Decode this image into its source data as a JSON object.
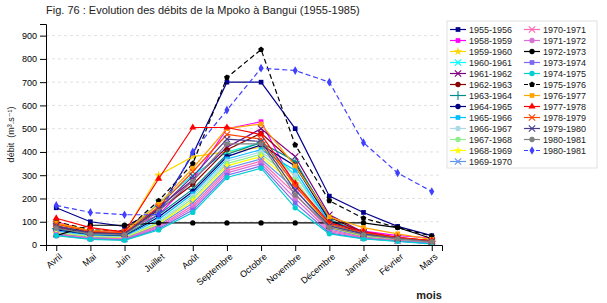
{
  "chart_data": {
    "type": "line",
    "title": "Fig. 76 : Evolution des débits de la Mpoko à Bangui (1955-1985)",
    "ylabel": "débit  (m³.s⁻¹)",
    "xlabel": "mois",
    "categories": [
      "Avril",
      "Mai",
      "Juin",
      "Juillet",
      "Août",
      "Septembre",
      "Octobre",
      "Novembre",
      "Décembre",
      "Janvier",
      "Février",
      "Mars"
    ],
    "ylim": [
      0,
      950
    ],
    "yticks": [
      0,
      100,
      200,
      300,
      400,
      500,
      600,
      700,
      800,
      900
    ],
    "grid": true,
    "legend": "right",
    "series": [
      {
        "name": "1955-1956",
        "color": "#00008B",
        "marker": "square",
        "line_style": "solid",
        "values": [
          160,
          100,
          80,
          150,
          390,
          700,
          700,
          500,
          210,
          140,
          80,
          40
        ]
      },
      {
        "name": "1958-1959",
        "color": "#FF00FF",
        "marker": "square",
        "line_style": "solid",
        "values": [
          100,
          60,
          60,
          130,
          280,
          500,
          530,
          250,
          100,
          60,
          40,
          30
        ]
      },
      {
        "name": "1959-1960",
        "color": "#FFD700",
        "marker": "star",
        "line_style": "solid",
        "values": [
          90,
          55,
          50,
          300,
          380,
          400,
          420,
          300,
          90,
          45,
          30,
          20
        ]
      },
      {
        "name": "1960-1961",
        "color": "#00FFFF",
        "marker": "x",
        "line_style": "solid",
        "values": [
          80,
          50,
          45,
          180,
          300,
          400,
          440,
          300,
          100,
          50,
          30,
          18
        ]
      },
      {
        "name": "1961-1962",
        "color": "#800080",
        "marker": "x",
        "line_style": "solid",
        "values": [
          75,
          50,
          45,
          160,
          280,
          420,
          500,
          380,
          130,
          55,
          32,
          18
        ]
      },
      {
        "name": "1962-1963",
        "color": "#8B0000",
        "marker": "circle",
        "line_style": "solid",
        "values": [
          80,
          55,
          50,
          150,
          260,
          410,
          480,
          350,
          120,
          52,
          30,
          17
        ]
      },
      {
        "name": "1963-1964",
        "color": "#008B8B",
        "marker": "plus",
        "line_style": "solid",
        "values": [
          70,
          45,
          40,
          130,
          240,
          390,
          440,
          360,
          110,
          48,
          28,
          16
        ]
      },
      {
        "name": "1964-1965",
        "color": "#000080",
        "marker": "circle",
        "line_style": "solid",
        "values": [
          65,
          42,
          38,
          120,
          230,
          380,
          430,
          340,
          105,
          45,
          26,
          14
        ]
      },
      {
        "name": "1965-1966",
        "color": "#00BFFF",
        "marker": "square",
        "line_style": "solid",
        "values": [
          60,
          40,
          36,
          110,
          220,
          370,
          410,
          320,
          95,
          42,
          24,
          13
        ]
      },
      {
        "name": "1966-1967",
        "color": "#ADD8E6",
        "marker": "circle",
        "line_style": "solid",
        "values": [
          55,
          38,
          34,
          100,
          210,
          360,
          400,
          300,
          88,
          40,
          23,
          12
        ]
      },
      {
        "name": "1967-1968",
        "color": "#90EE90",
        "marker": "circle",
        "line_style": "solid",
        "values": [
          52,
          36,
          32,
          95,
          200,
          350,
          390,
          280,
          82,
          38,
          22,
          11
        ]
      },
      {
        "name": "1968-1969",
        "color": "#FFFF00",
        "marker": "star",
        "line_style": "solid",
        "values": [
          50,
          34,
          30,
          90,
          190,
          340,
          380,
          260,
          76,
          36,
          21,
          10
        ]
      },
      {
        "name": "1969-1970",
        "color": "#6495ED",
        "marker": "x",
        "line_style": "solid",
        "values": [
          48,
          32,
          28,
          85,
          180,
          330,
          370,
          240,
          70,
          34,
          20,
          9
        ]
      },
      {
        "name": "1970-1971",
        "color": "#FF69B4",
        "marker": "x",
        "line_style": "solid",
        "values": [
          46,
          30,
          26,
          80,
          170,
          320,
          360,
          220,
          64,
          32,
          19,
          8
        ]
      },
      {
        "name": "1971-1972",
        "color": "#DA70D6",
        "marker": "circle",
        "line_style": "solid",
        "values": [
          44,
          28,
          24,
          75,
          160,
          310,
          350,
          200,
          58,
          30,
          18,
          7
        ]
      },
      {
        "name": "1972-1973",
        "color": "#000000",
        "marker": "circle",
        "line_style": "solid",
        "values": [
          40,
          85,
          85,
          95,
          95,
          95,
          95,
          95,
          95,
          95,
          75,
          28
        ]
      },
      {
        "name": "1973-1974",
        "color": "#7B68EE",
        "marker": "square",
        "line_style": "solid",
        "values": [
          42,
          26,
          22,
          70,
          150,
          300,
          340,
          180,
          52,
          28,
          17,
          6
        ]
      },
      {
        "name": "1974-1975",
        "color": "#00CED1",
        "marker": "circle",
        "line_style": "solid",
        "values": [
          40,
          24,
          20,
          65,
          140,
          290,
          330,
          160,
          48,
          26,
          16,
          5
        ]
      },
      {
        "name": "1975-1976",
        "color": "#000000",
        "marker": "pentagon",
        "line_style": "dashed",
        "values": [
          100,
          65,
          60,
          190,
          350,
          720,
          840,
          430,
          190,
          115,
          75,
          38
        ]
      },
      {
        "name": "1976-1977",
        "color": "#FFA500",
        "marker": "square",
        "line_style": "solid",
        "values": [
          95,
          62,
          58,
          175,
          330,
          500,
          520,
          340,
          120,
          75,
          48,
          24
        ]
      },
      {
        "name": "1977-1978",
        "color": "#FF0000",
        "marker": "triangle-up",
        "line_style": "solid",
        "values": [
          115,
          75,
          55,
          285,
          505,
          505,
          475,
          265,
          95,
          58,
          33,
          19
        ]
      },
      {
        "name": "1978-1979",
        "color": "#FF4500",
        "marker": "x",
        "line_style": "solid",
        "values": [
          90,
          58,
          52,
          165,
          315,
          475,
          455,
          255,
          88,
          52,
          30,
          17
        ]
      },
      {
        "name": "1979-1980",
        "color": "#483D8B",
        "marker": "x",
        "line_style": "solid",
        "values": [
          82,
          52,
          48,
          155,
          295,
          455,
          445,
          235,
          82,
          48,
          28,
          15
        ]
      },
      {
        "name": "1980-1981",
        "color": "#808080",
        "marker": "circle",
        "line_style": "solid",
        "values": [
          72,
          48,
          43,
          145,
          275,
          435,
          435,
          215,
          75,
          43,
          26,
          13
        ]
      },
      {
        "name": "1980-1981 ",
        "color": "#4040FF",
        "marker": "diamond",
        "line_style": "dashed",
        "values": [
          170,
          140,
          130,
          130,
          400,
          580,
          760,
          750,
          700,
          440,
          310,
          230
        ]
      }
    ]
  }
}
